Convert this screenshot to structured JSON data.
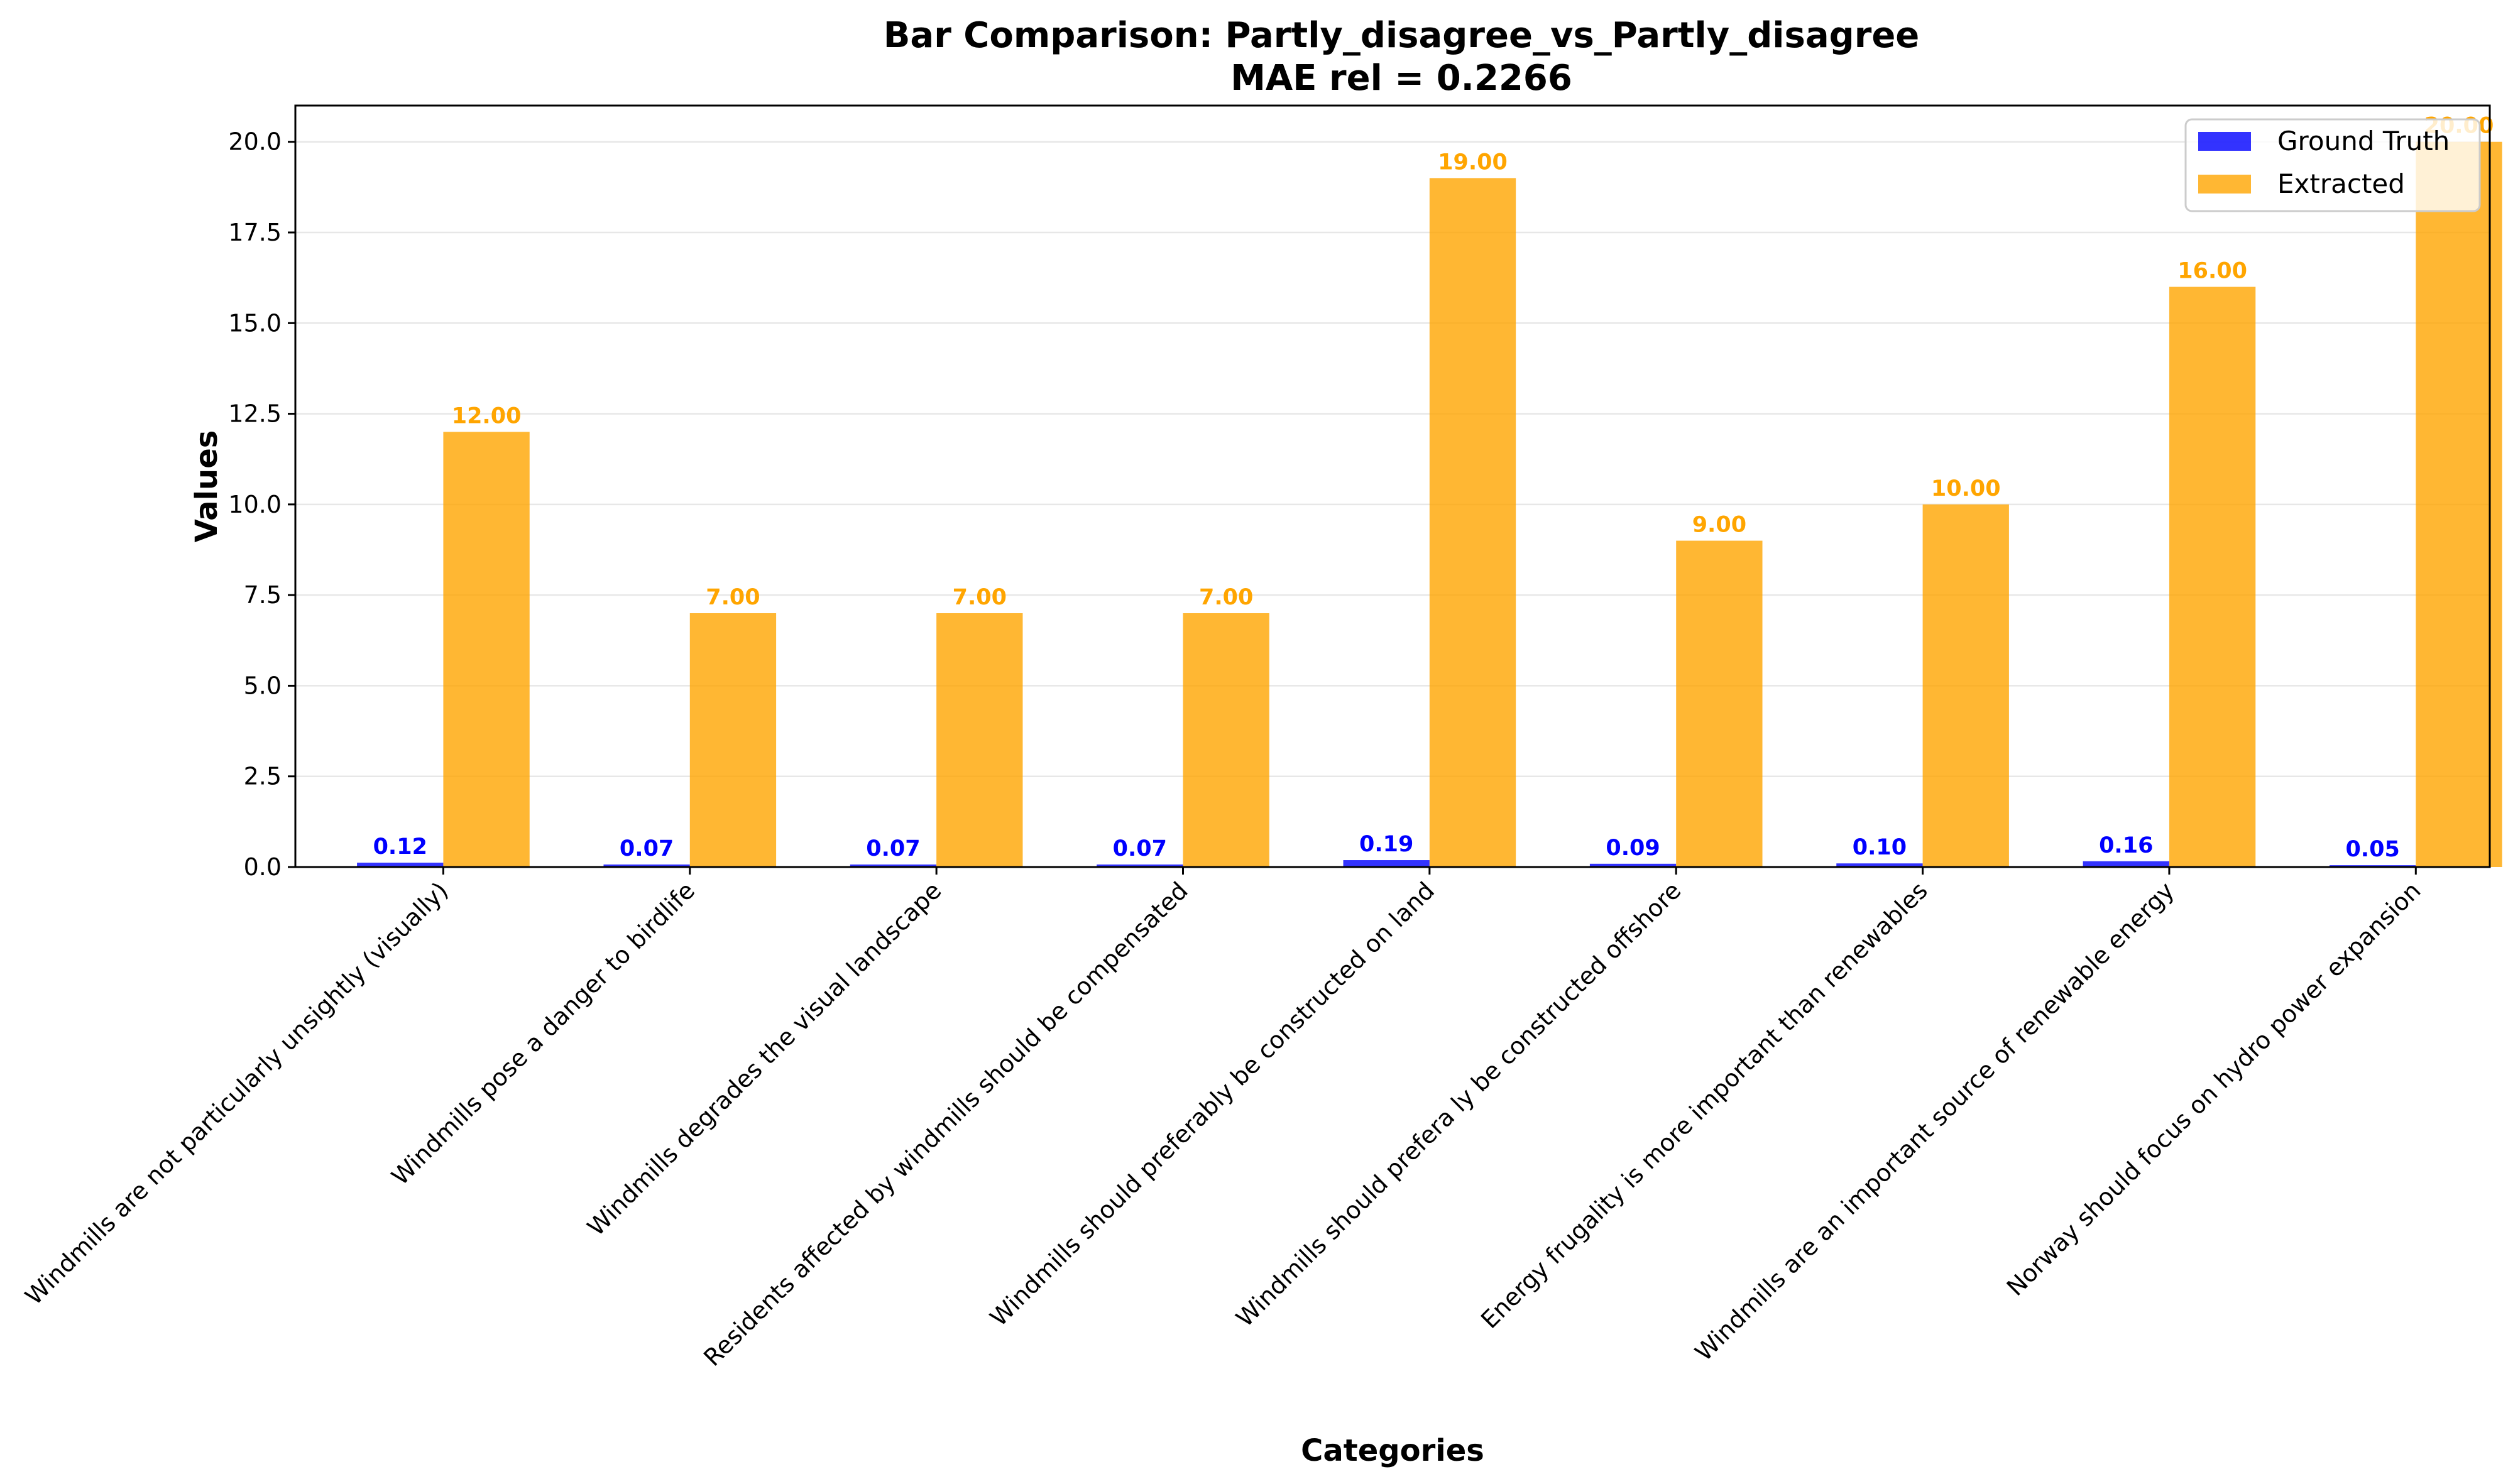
{
  "chart_data": {
    "type": "bar",
    "title": "Bar Comparison: Partly_disagree_vs_Partly_disagree",
    "subtitle": "MAE rel = 0.2266",
    "xlabel": "Categories",
    "ylabel": "Values",
    "ylim": [
      0,
      21
    ],
    "yticks": [
      0.0,
      2.5,
      5.0,
      7.5,
      10.0,
      12.5,
      15.0,
      17.5,
      20.0
    ],
    "ytick_labels": [
      "0.0",
      "2.5",
      "5.0",
      "7.5",
      "10.0",
      "12.5",
      "15.0",
      "17.5",
      "20.0"
    ],
    "grid": "y",
    "legend_position": "top-right",
    "categories": [
      "Windmills are not particularly unsightly (visually)",
      "Windmills pose a danger to birdlife",
      "Windmills degrades the visual landscape",
      "Residents affected by windmills should be compensated",
      "Windmills should preferably be constructed on land",
      "Windmills should prefera ly be constructed offshore",
      "Energy frugality is more important than renewables",
      "Windmills are an important source of renewable energy",
      "Norway should focus on hydro power expansion"
    ],
    "series": [
      {
        "name": "Ground Truth",
        "color": "#0000ff",
        "values": [
          0.12,
          0.07,
          0.07,
          0.07,
          0.19,
          0.09,
          0.1,
          0.16,
          0.05
        ],
        "labels": [
          "0.12",
          "0.07",
          "0.07",
          "0.07",
          "0.19",
          "0.09",
          "0.10",
          "0.16",
          "0.05"
        ]
      },
      {
        "name": "Extracted",
        "color": "#ffa500",
        "values": [
          12,
          7,
          7,
          7,
          19,
          9,
          10,
          16,
          20
        ],
        "labels": [
          "12.00",
          "7.00",
          "7.00",
          "7.00",
          "19.00",
          "9.00",
          "10.00",
          "16.00",
          "20.00"
        ]
      }
    ]
  }
}
